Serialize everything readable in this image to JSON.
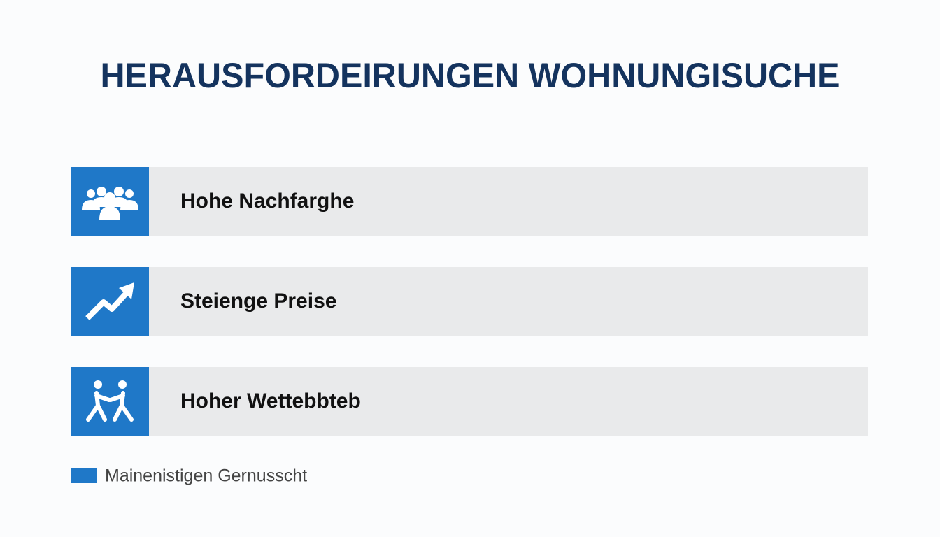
{
  "header": {
    "title": "HERAUSFORDEIRUNGEN WOHNUNGISUCHE"
  },
  "items": [
    {
      "label": "Hohe Nachfarghe"
    },
    {
      "label": "Steienge Preise"
    },
    {
      "label": "Hoher Wettebbteb"
    }
  ],
  "legend": {
    "label": "Mainenistigen Gernusscht"
  }
}
